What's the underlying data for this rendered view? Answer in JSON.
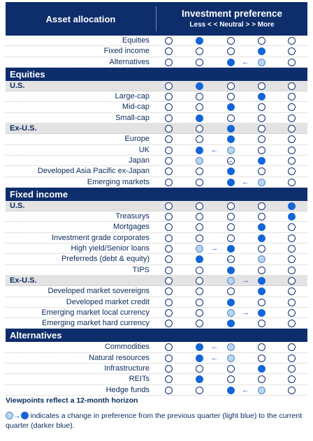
{
  "header": {
    "asset_label": "Asset allocation",
    "pref_title": "Investment preference",
    "scale_label": "Less < <  Neutral  > > More"
  },
  "colors": {
    "navy": "#0d2d6b",
    "dark_blue": "#1565d8",
    "light_blue": "#b8d6f2"
  },
  "rows": [
    {
      "label": "Equities",
      "type": "item",
      "cur": 1
    },
    {
      "label": "Fixed income",
      "type": "item",
      "cur": 3
    },
    {
      "label": "Alternatives",
      "type": "item",
      "cur": 2,
      "prev": 3
    },
    {
      "label": "Equities",
      "type": "section"
    },
    {
      "label": "U.S.",
      "type": "sub",
      "cur": 1
    },
    {
      "label": "Large-cap",
      "type": "item",
      "cur": 3
    },
    {
      "label": "Mid-cap",
      "type": "item",
      "cur": 2
    },
    {
      "label": "Small-cap",
      "type": "item",
      "cur": 1
    },
    {
      "label": "Ex-U.S.",
      "type": "sub",
      "cur": 2
    },
    {
      "label": "Europe",
      "type": "item",
      "cur": 2
    },
    {
      "label": "UK",
      "type": "item",
      "cur": 1,
      "prev": 2
    },
    {
      "label": "Japan",
      "type": "item",
      "cur": 3,
      "prev": 1
    },
    {
      "label": "Developed Asia Pacific ex-Japan",
      "type": "item",
      "cur": 2
    },
    {
      "label": "Emerging markets",
      "type": "item",
      "cur": 2,
      "prev": 3
    },
    {
      "label": "Fixed income",
      "type": "section"
    },
    {
      "label": "U.S.",
      "type": "sub",
      "cur": 4
    },
    {
      "label": "Treasurys",
      "type": "item",
      "cur": 4
    },
    {
      "label": "Mortgages",
      "type": "item",
      "cur": 3
    },
    {
      "label": "Investment grade corporates",
      "type": "item",
      "cur": 3
    },
    {
      "label": "High yield/Senior loans",
      "type": "item",
      "cur": 2,
      "prev": 1
    },
    {
      "label": "Preferreds (debt & equity)",
      "type": "item",
      "cur": 1,
      "prev": 3
    },
    {
      "label": "TIPS",
      "type": "item",
      "cur": 2
    },
    {
      "label": "Ex-U.S.",
      "type": "sub",
      "cur": 3,
      "prev": 2
    },
    {
      "label": "Developed market sovereigns",
      "type": "item",
      "cur": 3
    },
    {
      "label": "Developed market credit",
      "type": "item",
      "cur": 2
    },
    {
      "label": "Emerging market local currency",
      "type": "item",
      "cur": 3,
      "prev": 2
    },
    {
      "label": "Emerging market hard currency",
      "type": "item",
      "cur": 2
    },
    {
      "label": "Alternatives",
      "type": "section"
    },
    {
      "label": "Commodities",
      "type": "item",
      "cur": 1,
      "prev": 2
    },
    {
      "label": "Natural resources",
      "type": "item",
      "cur": 1,
      "prev": 2
    },
    {
      "label": "Infrastructure",
      "type": "item",
      "cur": 3
    },
    {
      "label": "REITs",
      "type": "item",
      "cur": 1
    },
    {
      "label": "Hedge funds",
      "type": "item",
      "cur": 2,
      "prev": 3
    }
  ],
  "footer": {
    "horizon": "Viewpoints reflect a 12-month horizon",
    "legend_text": " indicates a change in preference from the previous quarter (light blue) to the current quarter (darker blue)."
  }
}
